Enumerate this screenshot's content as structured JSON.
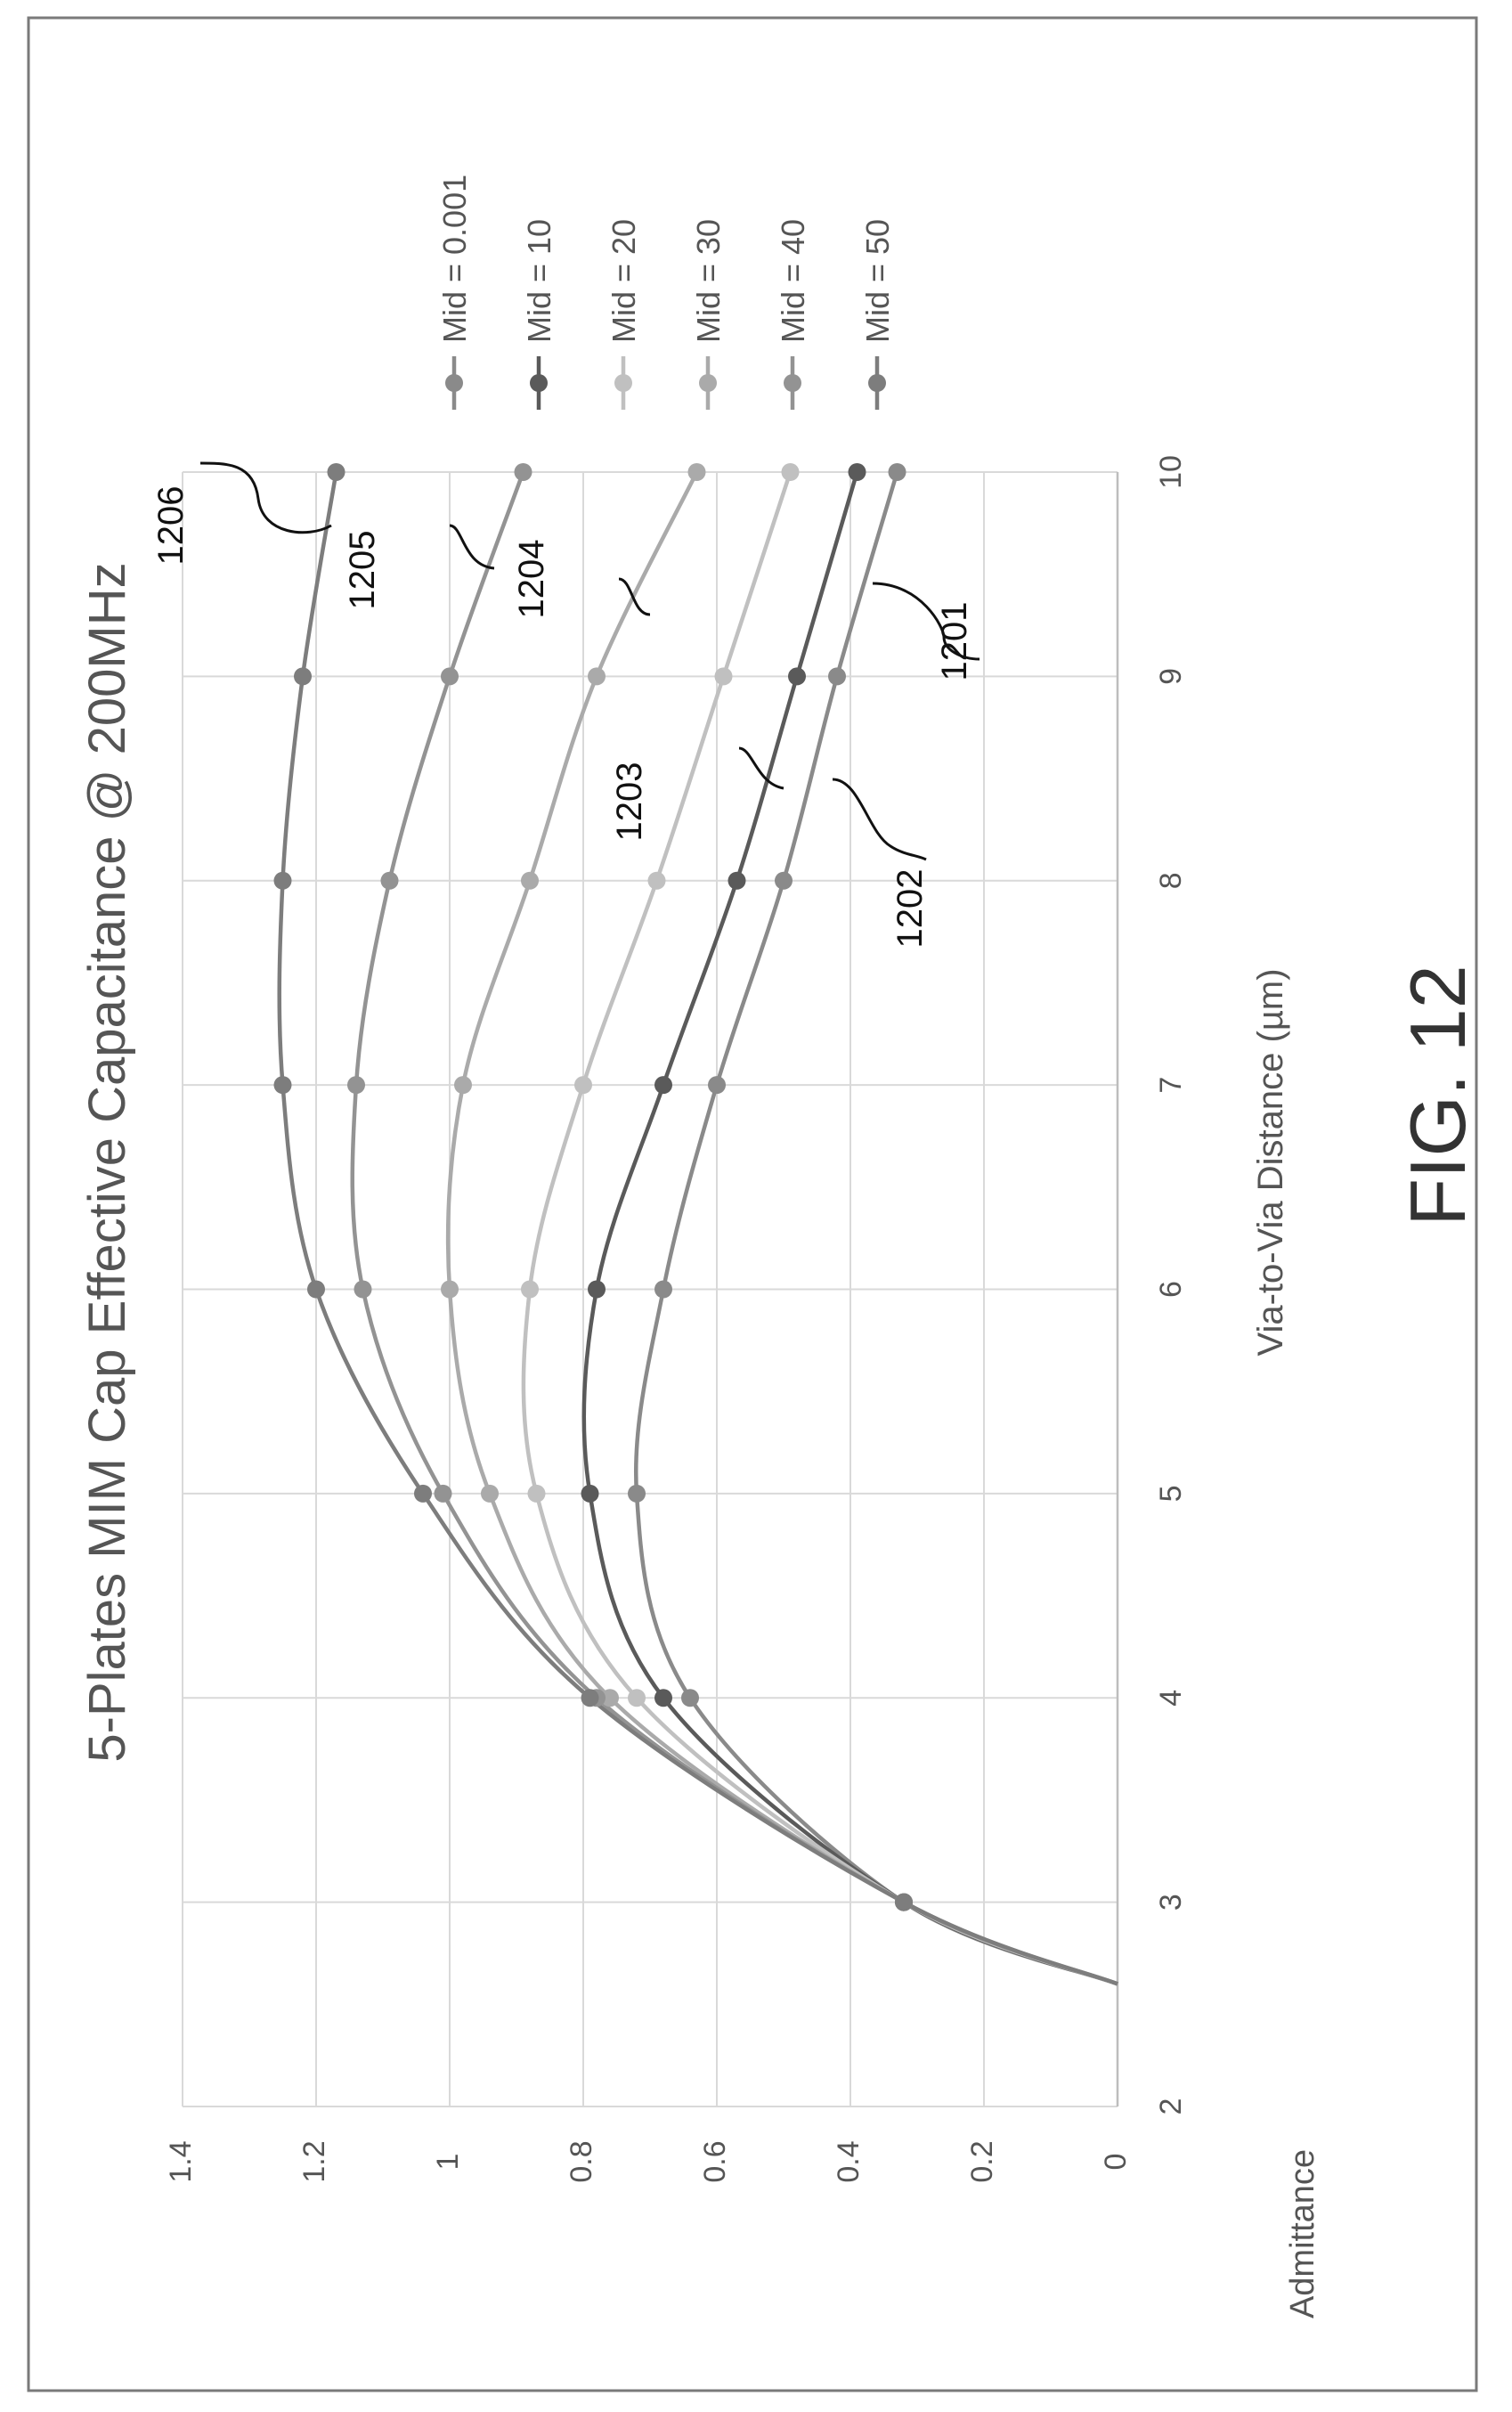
{
  "figure_label": "FIG. 12",
  "chart_data": {
    "type": "line",
    "title": "5-Plates MIM Cap Effective Capacitance @ 200MHz",
    "xlabel": "Via-to-Via Distance (µm)",
    "ylabel": "Admittance",
    "xlim": [
      2,
      10
    ],
    "ylim": [
      0,
      1.4
    ],
    "x_ticks": [
      "2",
      "3",
      "4",
      "5",
      "6",
      "7",
      "8",
      "9",
      "10"
    ],
    "y_ticks": [
      "0",
      "0.2",
      "0.4",
      "0.6",
      "0.8",
      "1",
      "1.2",
      "1.4"
    ],
    "grid": true,
    "orientation": "rotated 90° counter-clockwise",
    "legend_position": "right",
    "x": [
      3,
      4,
      5,
      6,
      7,
      8,
      9,
      10
    ],
    "series": [
      {
        "name": "Mid = 0.001",
        "ref": "1201",
        "color": "#8a8a8a",
        "values": [
          0.32,
          0.64,
          0.72,
          0.68,
          0.6,
          0.5,
          0.42,
          0.33
        ]
      },
      {
        "name": "Mid = 10",
        "ref": "1202",
        "color": "#5a5a5a",
        "values": [
          0.32,
          0.68,
          0.79,
          0.78,
          0.68,
          0.57,
          0.48,
          0.39
        ]
      },
      {
        "name": "Mid = 20",
        "ref": "1203",
        "color": "#c0c0c0",
        "values": [
          0.32,
          0.72,
          0.87,
          0.88,
          0.8,
          0.69,
          0.59,
          0.49
        ]
      },
      {
        "name": "Mid = 30",
        "ref": "1204",
        "color": "#aaaaaa",
        "values": [
          0.32,
          0.76,
          0.94,
          1.0,
          0.98,
          0.88,
          0.78,
          0.63
        ]
      },
      {
        "name": "Mid = 40",
        "ref": "1205",
        "color": "#939393",
        "values": [
          0.32,
          0.78,
          1.01,
          1.13,
          1.14,
          1.09,
          1.0,
          0.89
        ]
      },
      {
        "name": "Mid = 50",
        "ref": "1206",
        "color": "#7d7d7d",
        "values": [
          0.32,
          0.79,
          1.04,
          1.2,
          1.25,
          1.25,
          1.22,
          1.17
        ]
      }
    ],
    "legend": [
      "Mid = 0.001",
      "Mid = 10",
      "Mid = 20",
      "Mid = 30",
      "Mid = 40",
      "Mid = 50"
    ]
  }
}
